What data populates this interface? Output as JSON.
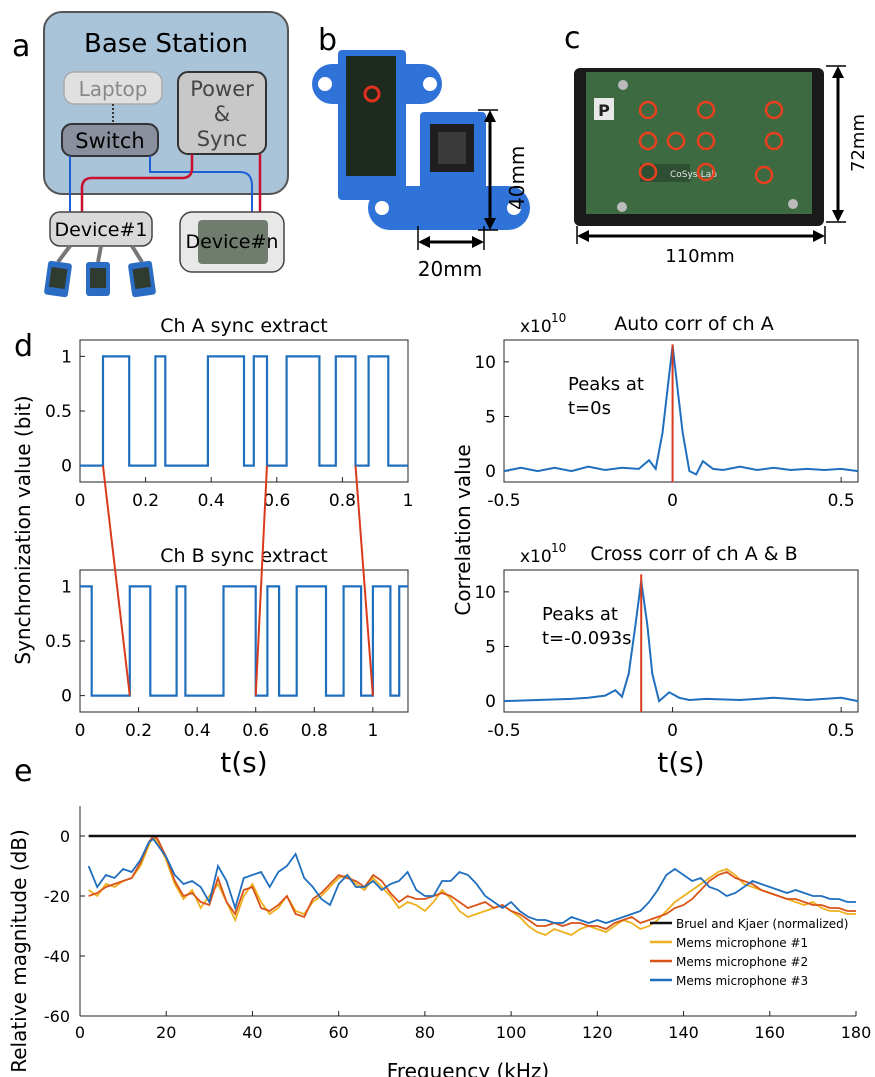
{
  "colors": {
    "blue": "#1f6fbf",
    "red": "#d93a1c",
    "orange": "#edb120",
    "orange_red": "#d95319",
    "black": "#111111",
    "station_fill": "#a9c3d8",
    "device_fill": "#d9d9d9"
  },
  "panels": {
    "a": {
      "letter": "a",
      "title": "Base Station",
      "laptop": "Laptop",
      "switch": "Switch",
      "power_lines": [
        "Power",
        "&",
        "Sync"
      ],
      "device1": "Device#1",
      "devicen": "Device#n"
    },
    "b": {
      "letter": "b",
      "height_label": "40mm",
      "width_label": "20mm"
    },
    "c": {
      "letter": "c",
      "height_label": "72mm",
      "width_label": "110mm",
      "board_letter": "P",
      "logo_text": "CoSys-Lab"
    },
    "d": {
      "letter": "d"
    },
    "e": {
      "letter": "e"
    }
  },
  "chart_data": [
    {
      "id": "chA",
      "type": "line",
      "title": "Ch A sync extract",
      "xlim": [
        0,
        1
      ],
      "ylim": [
        -0.15,
        1.15
      ],
      "xticks": [
        "0",
        "0.2",
        "0.4",
        "0.6",
        "0.8",
        "1"
      ],
      "xtick_values": [
        0,
        0.2,
        0.4,
        0.6,
        0.8,
        1
      ],
      "yticks": [
        "0",
        "0.5",
        "1"
      ],
      "ytick_values": [
        0,
        0.5,
        1
      ],
      "series": [
        {
          "x": [
            0,
            0.07,
            0.07,
            0.15,
            0.15,
            0.23,
            0.23,
            0.26,
            0.26,
            0.39,
            0.39,
            0.5,
            0.5,
            0.53,
            0.53,
            0.57,
            0.57,
            0.63,
            0.63,
            0.73,
            0.73,
            0.78,
            0.78,
            0.84,
            0.84,
            0.88,
            0.88,
            0.94,
            0.94,
            1.0
          ],
          "y": [
            0,
            0,
            1,
            1,
            0,
            0,
            1,
            1,
            0,
            0,
            1,
            1,
            0,
            0,
            1,
            1,
            0,
            0,
            1,
            1,
            0,
            0,
            1,
            1,
            0,
            0,
            1,
            1,
            0,
            0
          ]
        }
      ]
    },
    {
      "id": "chB",
      "type": "line",
      "title": "Ch B sync extract",
      "xlabel": "t(s)",
      "xlim": [
        0,
        1.12
      ],
      "ylim": [
        -0.15,
        1.15
      ],
      "xticks": [
        "0",
        "0.2",
        "0.4",
        "0.6",
        "0.8",
        "1"
      ],
      "xtick_values": [
        0,
        0.2,
        0.4,
        0.6,
        0.8,
        1
      ],
      "yticks": [
        "0",
        "0.5",
        "1"
      ],
      "ytick_values": [
        0,
        0.5,
        1
      ],
      "series": [
        {
          "x": [
            0,
            0.04,
            0.04,
            0.17,
            0.17,
            0.24,
            0.24,
            0.33,
            0.33,
            0.36,
            0.36,
            0.49,
            0.49,
            0.6,
            0.6,
            0.64,
            0.64,
            0.68,
            0.68,
            0.74,
            0.74,
            0.84,
            0.84,
            0.9,
            0.9,
            0.96,
            0.96,
            1.0,
            1.0,
            1.06,
            1.06,
            1.09,
            1.09,
            1.12
          ],
          "y": [
            1,
            1,
            0,
            0,
            1,
            1,
            0,
            0,
            1,
            1,
            0,
            0,
            1,
            1,
            0,
            0,
            1,
            1,
            0,
            0,
            1,
            1,
            0,
            0,
            1,
            1,
            0,
            0,
            1,
            1,
            0,
            0,
            1,
            1
          ]
        }
      ]
    },
    {
      "id": "autocorr",
      "type": "line",
      "title": "Auto corr of ch A",
      "exponent_label": "x10",
      "exponent_power": "10",
      "annotation": [
        "Peaks at",
        "t=0s"
      ],
      "xlim": [
        -0.5,
        0.55
      ],
      "ylim": [
        -1,
        12
      ],
      "xticks": [
        "-0.5",
        "0",
        "0.5"
      ],
      "xtick_values": [
        -0.5,
        0,
        0.5
      ],
      "yticks": [
        "0",
        "5",
        "10"
      ],
      "ytick_values": [
        0,
        5,
        10
      ],
      "peak_x": 0,
      "series": [
        {
          "x": [
            -0.5,
            -0.45,
            -0.4,
            -0.35,
            -0.3,
            -0.25,
            -0.2,
            -0.15,
            -0.1,
            -0.07,
            -0.05,
            -0.03,
            -0.015,
            0,
            0.015,
            0.03,
            0.05,
            0.07,
            0.09,
            0.12,
            0.15,
            0.2,
            0.25,
            0.3,
            0.35,
            0.4,
            0.45,
            0.5,
            0.55
          ],
          "y": [
            0,
            0.3,
            0,
            0.3,
            0,
            0.4,
            0.1,
            0.3,
            0.2,
            1.0,
            0.2,
            3.5,
            7.5,
            11.5,
            7.5,
            3.5,
            0,
            -0.3,
            0.9,
            0.2,
            0.1,
            0.4,
            0.1,
            0.3,
            0.1,
            0.2,
            0.1,
            0.2,
            0
          ]
        }
      ]
    },
    {
      "id": "crosscorr",
      "type": "line",
      "title": "Cross corr of ch A & B",
      "xlabel": "t(s)",
      "exponent_label": "x10",
      "exponent_power": "10",
      "annotation": [
        "Peaks at",
        "t=-0.093s"
      ],
      "xlim": [
        -0.5,
        0.55
      ],
      "ylim": [
        -1,
        12
      ],
      "xticks": [
        "-0.5",
        "0",
        "0.5"
      ],
      "xtick_values": [
        -0.5,
        0,
        0.5
      ],
      "yticks": [
        "0",
        "5",
        "10"
      ],
      "ytick_values": [
        0,
        5,
        10
      ],
      "peak_x": -0.093,
      "series": [
        {
          "x": [
            -0.5,
            -0.4,
            -0.3,
            -0.25,
            -0.2,
            -0.17,
            -0.15,
            -0.13,
            -0.11,
            -0.093,
            -0.075,
            -0.06,
            -0.04,
            -0.01,
            0.02,
            0.05,
            0.1,
            0.2,
            0.3,
            0.4,
            0.5,
            0.55
          ],
          "y": [
            0,
            0.1,
            0.2,
            0.3,
            0.5,
            1.0,
            0.4,
            2.5,
            7.0,
            11.0,
            7.0,
            2.5,
            0,
            0.8,
            0.3,
            0.1,
            0.2,
            0.1,
            0.3,
            0.1,
            0.3,
            0
          ]
        }
      ]
    },
    {
      "id": "freq",
      "type": "line",
      "xlabel": "Frequency (kHz)",
      "ylabel": "Relative magnitude (dB)",
      "xlim": [
        0,
        180
      ],
      "ylim": [
        -60,
        10
      ],
      "xticks": [
        "0",
        "20",
        "40",
        "60",
        "80",
        "100",
        "120",
        "140",
        "160",
        "180"
      ],
      "xtick_values": [
        0,
        20,
        40,
        60,
        80,
        100,
        120,
        140,
        160,
        180
      ],
      "yticks": [
        "-60",
        "-40",
        "-20",
        "0"
      ],
      "ytick_values": [
        -60,
        -40,
        -20,
        0
      ],
      "legend_position": "bottom-right",
      "x": [
        2,
        4,
        6,
        8,
        10,
        12,
        14,
        16,
        17,
        18,
        20,
        22,
        24,
        26,
        28,
        30,
        32,
        34,
        36,
        38,
        40,
        42,
        44,
        46,
        48,
        50,
        52,
        54,
        56,
        58,
        60,
        62,
        64,
        66,
        68,
        70,
        72,
        74,
        76,
        78,
        80,
        82,
        84,
        86,
        88,
        90,
        92,
        94,
        96,
        98,
        100,
        102,
        104,
        106,
        108,
        110,
        112,
        114,
        116,
        118,
        120,
        122,
        124,
        126,
        128,
        130,
        132,
        134,
        136,
        138,
        140,
        142,
        144,
        146,
        148,
        150,
        152,
        154,
        156,
        158,
        160,
        162,
        164,
        166,
        168,
        170,
        172,
        174,
        176,
        178,
        180
      ],
      "series": [
        {
          "name": "Bruel and Kjaer (normalized)",
          "color": "#111111",
          "y": [
            0,
            0,
            0,
            0,
            0,
            0,
            0,
            0,
            0,
            0,
            0,
            0,
            0,
            0,
            0,
            0,
            0,
            0,
            0,
            0,
            0,
            0,
            0,
            0,
            0,
            0,
            0,
            0,
            0,
            0,
            0,
            0,
            0,
            0,
            0,
            0,
            0,
            0,
            0,
            0,
            0,
            0,
            0,
            0,
            0,
            0,
            0,
            0,
            0,
            0,
            0,
            0,
            0,
            0,
            0,
            0,
            0,
            0,
            0,
            0,
            0,
            0,
            0,
            0,
            0,
            0,
            0,
            0,
            0,
            0,
            0,
            0,
            0,
            0,
            0,
            0,
            0,
            0,
            0,
            0,
            0,
            0,
            0,
            0,
            0,
            0,
            0,
            0,
            0,
            0,
            0
          ]
        },
        {
          "name": "Mems microphone #1",
          "color": "#edb120",
          "y": [
            -18,
            -20,
            -16,
            -17,
            -15,
            -14,
            -10,
            -3,
            0,
            -2,
            -8,
            -16,
            -21,
            -18,
            -24,
            -20,
            -16,
            -22,
            -28,
            -20,
            -16,
            -22,
            -26,
            -24,
            -20,
            -25,
            -26,
            -22,
            -20,
            -17,
            -14,
            -13,
            -16,
            -18,
            -14,
            -17,
            -20,
            -24,
            -22,
            -23,
            -25,
            -22,
            -18,
            -21,
            -25,
            -27,
            -26,
            -25,
            -24,
            -23,
            -25,
            -27,
            -30,
            -32,
            -33,
            -31,
            -32,
            -33,
            -31,
            -30,
            -31,
            -32,
            -30,
            -28,
            -29,
            -31,
            -30,
            -28,
            -25,
            -22,
            -20,
            -18,
            -16,
            -14,
            -12,
            -11,
            -13,
            -16,
            -17,
            -18,
            -19,
            -20,
            -21,
            -22,
            -23,
            -22,
            -24,
            -25,
            -25,
            -26,
            -26
          ]
        },
        {
          "name": "Mems microphone #2",
          "color": "#d95319",
          "y": [
            -20,
            -19,
            -17,
            -16,
            -15,
            -14,
            -9,
            -2,
            0,
            -1,
            -7,
            -15,
            -20,
            -19,
            -22,
            -23,
            -14,
            -22,
            -26,
            -18,
            -17,
            -24,
            -25,
            -23,
            -20,
            -26,
            -27,
            -21,
            -19,
            -16,
            -13,
            -14,
            -15,
            -17,
            -13,
            -15,
            -19,
            -22,
            -20,
            -21,
            -21,
            -20,
            -19,
            -20,
            -22,
            -24,
            -23,
            -22,
            -24,
            -23,
            -25,
            -26,
            -28,
            -30,
            -30,
            -29,
            -30,
            -29,
            -29,
            -30,
            -30,
            -31,
            -29,
            -28,
            -27,
            -29,
            -28,
            -27,
            -26,
            -24,
            -23,
            -21,
            -18,
            -15,
            -13,
            -12,
            -14,
            -15,
            -16,
            -18,
            -19,
            -20,
            -21,
            -21,
            -22,
            -23,
            -23,
            -24,
            -24,
            -25,
            -25
          ]
        },
        {
          "name": "Mems microphone #3",
          "color": "#1f6fbf",
          "y": [
            -10,
            -17,
            -13,
            -14,
            -11,
            -12,
            -8,
            -2,
            -1,
            -3,
            -7,
            -13,
            -16,
            -15,
            -17,
            -22,
            -10,
            -15,
            -24,
            -14,
            -13,
            -12,
            -17,
            -12,
            -10,
            -6,
            -14,
            -17,
            -21,
            -23,
            -16,
            -13,
            -17,
            -17,
            -15,
            -18,
            -16,
            -15,
            -12,
            -18,
            -20,
            -20,
            -15,
            -15,
            -12,
            -13,
            -16,
            -20,
            -22,
            -24,
            -22,
            -25,
            -27,
            -28,
            -28,
            -29,
            -29,
            -27,
            -28,
            -29,
            -28,
            -29,
            -28,
            -27,
            -26,
            -25,
            -22,
            -18,
            -13,
            -11,
            -13,
            -15,
            -14,
            -17,
            -18,
            -20,
            -19,
            -17,
            -15,
            -16,
            -17,
            -18,
            -19,
            -18,
            -19,
            -20,
            -20,
            -21,
            -21,
            -22,
            -22
          ]
        }
      ]
    }
  ]
}
